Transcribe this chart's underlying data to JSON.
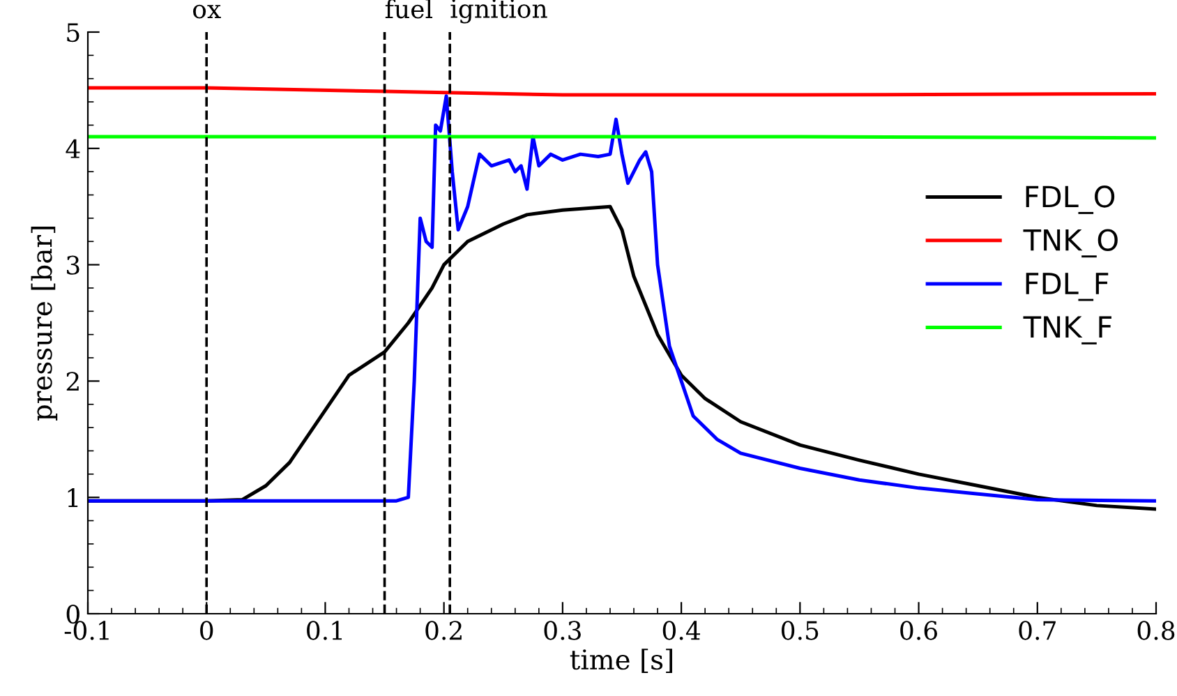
{
  "chart_data": {
    "type": "line",
    "xlabel": "time [s]",
    "ylabel": "pressure [bar]",
    "xlim": [
      -0.1,
      0.8
    ],
    "xticks": [
      {
        "value": -0.1,
        "label": "-0.1"
      },
      0,
      0.1,
      0.2,
      0.3,
      0.4,
      0.5,
      0.6,
      0.7,
      0.8
    ],
    "ylim": [
      0,
      5
    ],
    "yticks": [
      0,
      1,
      2,
      3,
      4,
      5
    ],
    "grid": false,
    "legend": "right",
    "line_style": "solid",
    "marker": "none",
    "ref_lines": [
      {
        "axis": "x",
        "value": 0,
        "label": "ox",
        "color": "#000000",
        "line_style": "dashed"
      },
      {
        "axis": "x",
        "value": 0.15,
        "label": "fuel",
        "color": "#000000",
        "line_style": "dashed"
      },
      {
        "axis": "x",
        "value": 0.205,
        "label": "ignition",
        "color": "#000000",
        "line_style": "dashed"
      }
    ],
    "series": [
      {
        "name": "FDL_O",
        "color": "#000000",
        "x": [
          -0.1,
          0,
          0.03,
          0.05,
          0.07,
          0.1,
          0.12,
          0.15,
          0.17,
          0.19,
          0.2,
          0.22,
          0.25,
          0.27,
          0.3,
          0.34,
          0.35,
          0.36,
          0.38,
          0.4,
          0.42,
          0.45,
          0.5,
          0.55,
          0.6,
          0.65,
          0.7,
          0.75,
          0.8
        ],
        "values": [
          0.97,
          0.97,
          0.98,
          1.1,
          1.3,
          1.75,
          2.05,
          2.25,
          2.5,
          2.8,
          3.0,
          3.2,
          3.35,
          3.43,
          3.47,
          3.5,
          3.3,
          2.9,
          2.4,
          2.05,
          1.85,
          1.65,
          1.45,
          1.32,
          1.2,
          1.1,
          1.0,
          0.93,
          0.9
        ]
      },
      {
        "name": "TNK_O",
        "color": "#ff0000",
        "x": [
          -0.1,
          0,
          0.15,
          0.3,
          0.5,
          0.8
        ],
        "values": [
          4.52,
          4.52,
          4.49,
          4.46,
          4.46,
          4.47
        ]
      },
      {
        "name": "FDL_F",
        "color": "#0000ff",
        "x": [
          -0.1,
          0.16,
          0.17,
          0.175,
          0.18,
          0.185,
          0.19,
          0.193,
          0.197,
          0.202,
          0.207,
          0.212,
          0.22,
          0.23,
          0.24,
          0.255,
          0.26,
          0.265,
          0.27,
          0.275,
          0.28,
          0.29,
          0.3,
          0.315,
          0.33,
          0.34,
          0.345,
          0.35,
          0.355,
          0.365,
          0.37,
          0.375,
          0.38,
          0.39,
          0.4,
          0.41,
          0.43,
          0.45,
          0.5,
          0.55,
          0.6,
          0.65,
          0.7,
          0.8
        ],
        "values": [
          0.97,
          0.97,
          1.0,
          2.0,
          3.4,
          3.2,
          3.15,
          4.2,
          4.15,
          4.45,
          3.8,
          3.3,
          3.5,
          3.95,
          3.85,
          3.9,
          3.8,
          3.85,
          3.65,
          4.1,
          3.85,
          3.95,
          3.9,
          3.95,
          3.93,
          3.95,
          4.25,
          3.95,
          3.7,
          3.9,
          3.97,
          3.8,
          3.0,
          2.3,
          2.0,
          1.7,
          1.5,
          1.38,
          1.25,
          1.15,
          1.08,
          1.03,
          0.98,
          0.97
        ]
      },
      {
        "name": "TNK_F",
        "color": "#00ff00",
        "x": [
          -0.1,
          0.2,
          0.5,
          0.8
        ],
        "values": [
          4.1,
          4.1,
          4.1,
          4.09
        ]
      }
    ]
  }
}
